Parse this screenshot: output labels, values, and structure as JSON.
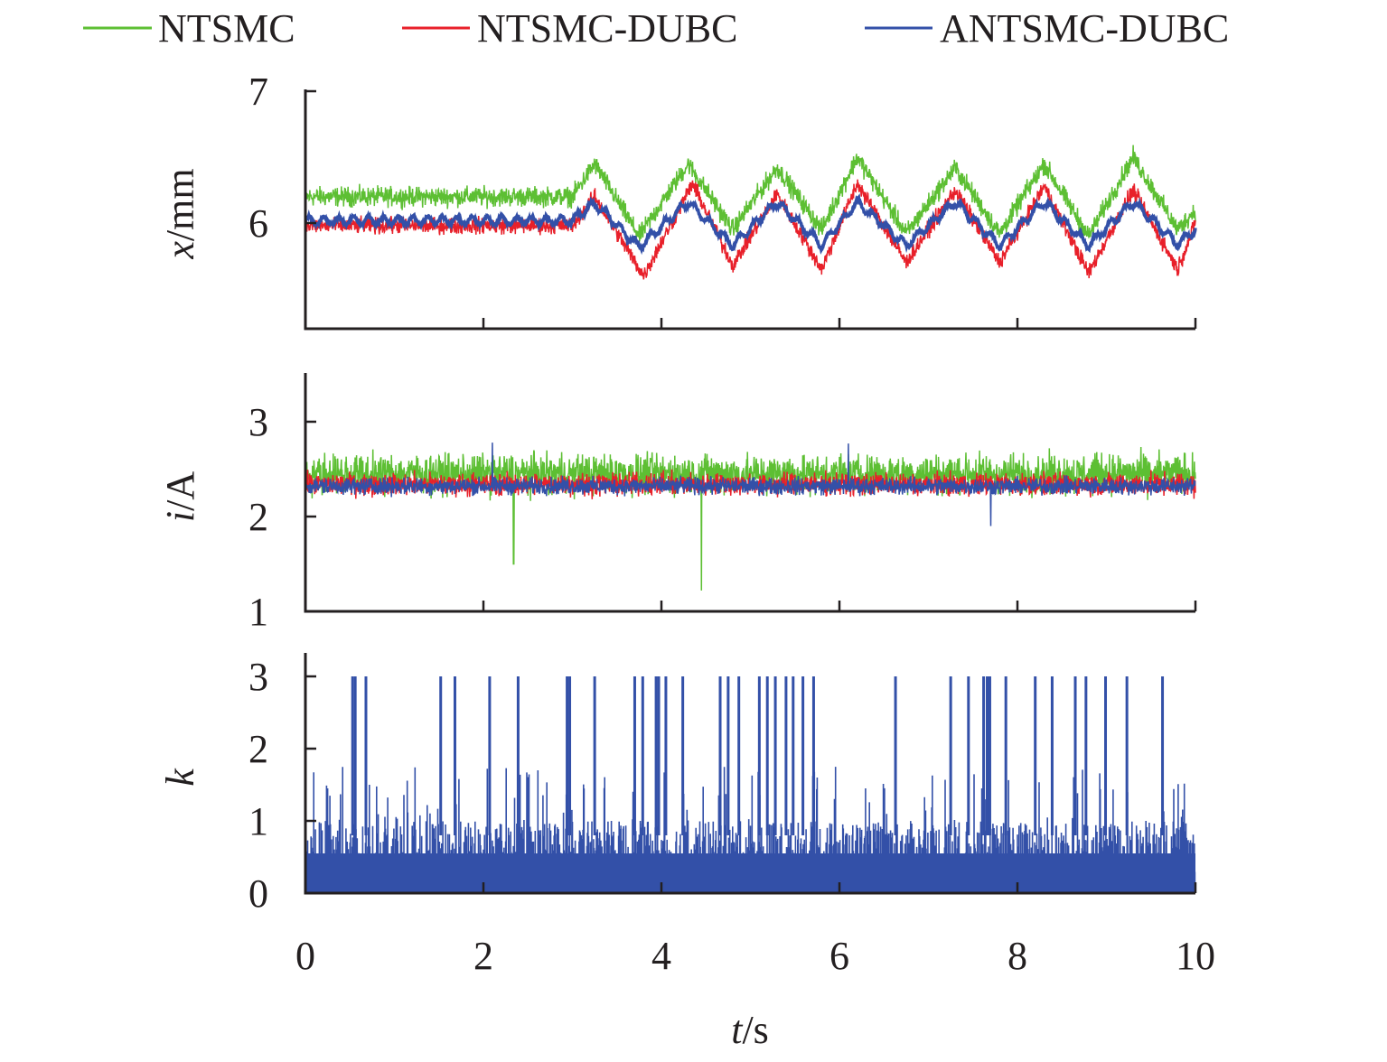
{
  "chart_data": {
    "type": "line",
    "legend": {
      "placement": "top",
      "entries": [
        {
          "name": "NTSMC",
          "color": "#5dbf33"
        },
        {
          "name": "NTSMC-DUBC",
          "color": "#e8202a"
        },
        {
          "name": "ANTSMC-DUBC",
          "color": "#3350a8"
        }
      ]
    },
    "xlabel": {
      "var": "t",
      "unit": "/s"
    },
    "xlim": [
      0,
      10
    ],
    "xticks": [
      "0",
      "2",
      "4",
      "6",
      "8",
      "10"
    ],
    "xtick_values": [
      0,
      2,
      4,
      6,
      8,
      10
    ],
    "panels": [
      {
        "id": "position",
        "ylabel": {
          "var": "x",
          "unit": "/mm"
        },
        "ylim": [
          5.2,
          7
        ],
        "yticks": [
          "6",
          "7"
        ],
        "ytick_values": [
          6,
          7
        ],
        "series": [
          {
            "name": "NTSMC",
            "color": "#5dbf33",
            "noise": 0.12,
            "t": [
              0,
              3.0,
              3.25,
              3.75,
              4.3,
              4.8,
              5.3,
              5.8,
              6.2,
              6.75,
              7.3,
              7.8,
              8.3,
              8.8,
              9.3,
              9.8,
              10
            ],
            "values": [
              6.2,
              6.2,
              6.45,
              5.9,
              6.45,
              5.95,
              6.42,
              5.95,
              6.5,
              5.92,
              6.42,
              5.92,
              6.45,
              5.9,
              6.5,
              5.95,
              6.1
            ]
          },
          {
            "name": "NTSMC-DUBC",
            "color": "#e8202a",
            "noise": 0.1,
            "t": [
              0,
              3.0,
              3.25,
              3.8,
              4.35,
              4.8,
              5.3,
              5.8,
              6.2,
              6.75,
              7.3,
              7.8,
              8.3,
              8.8,
              9.3,
              9.8,
              10
            ],
            "values": [
              5.98,
              5.98,
              6.2,
              5.6,
              6.3,
              5.68,
              6.22,
              5.65,
              6.3,
              5.7,
              6.25,
              5.7,
              6.28,
              5.62,
              6.25,
              5.65,
              6.0
            ]
          },
          {
            "name": "ANTSMC-DUBC",
            "color": "#3350a8",
            "noise": 0.02,
            "ripple": 0.03,
            "t": [
              0,
              3.0,
              3.25,
              3.75,
              4.3,
              4.8,
              5.3,
              5.8,
              6.2,
              6.75,
              7.3,
              7.8,
              8.3,
              8.8,
              9.3,
              9.8,
              10
            ],
            "values": [
              6.02,
              6.02,
              6.15,
              5.82,
              6.16,
              5.83,
              6.16,
              5.83,
              6.16,
              5.83,
              6.16,
              5.83,
              6.16,
              5.83,
              6.16,
              5.84,
              5.95
            ]
          }
        ]
      },
      {
        "id": "current",
        "ylabel": {
          "var": "i",
          "unit": "/A"
        },
        "ylim": [
          1,
          3.5
        ],
        "yticks": [
          "1",
          "2",
          "3"
        ],
        "ytick_values": [
          1,
          2,
          3
        ],
        "series": [
          {
            "name": "NTSMC",
            "color": "#5dbf33",
            "mean": 2.45,
            "noise": 0.3,
            "spikes": [
              {
                "t": 2.34,
                "value": 1.5
              },
              {
                "t": 4.45,
                "value": 1.22
              }
            ]
          },
          {
            "name": "NTSMC-DUBC",
            "color": "#e8202a",
            "mean": 2.34,
            "noise": 0.17,
            "spikes": []
          },
          {
            "name": "ANTSMC-DUBC",
            "color": "#3350a8",
            "mean": 2.32,
            "noise": 0.13,
            "spikes": [
              {
                "t": 2.1,
                "value": 2.78
              },
              {
                "t": 6.1,
                "value": 2.77
              },
              {
                "t": 7.7,
                "value": 1.9
              }
            ]
          }
        ]
      },
      {
        "id": "gain",
        "ylabel": {
          "var": "k",
          "unit": ""
        },
        "ylim": [
          0,
          3.3
        ],
        "yticks": [
          "0",
          "1",
          "2",
          "3"
        ],
        "ytick_values": [
          0,
          1,
          2,
          3
        ],
        "series": [
          {
            "name": "ANTSMC-DUBC",
            "color": "#3350a8",
            "base_max": 1.0,
            "burst_max": 1.75,
            "saturation_value": 3,
            "saturation_times": [
              0.53,
              0.56,
              0.68,
              1.52,
              1.68,
              2.07,
              2.39,
              2.94,
              2.97,
              3.25,
              3.7,
              3.79,
              3.94,
              3.97,
              4.05,
              4.24,
              4.66,
              4.75,
              4.87,
              5.1,
              5.19,
              5.28,
              5.4,
              5.48,
              5.59,
              5.71,
              6.63,
              7.25,
              7.45,
              7.62,
              7.66,
              7.69,
              7.87,
              8.2,
              8.39,
              8.65,
              8.77,
              8.99,
              9.23,
              9.63
            ]
          }
        ]
      }
    ]
  }
}
